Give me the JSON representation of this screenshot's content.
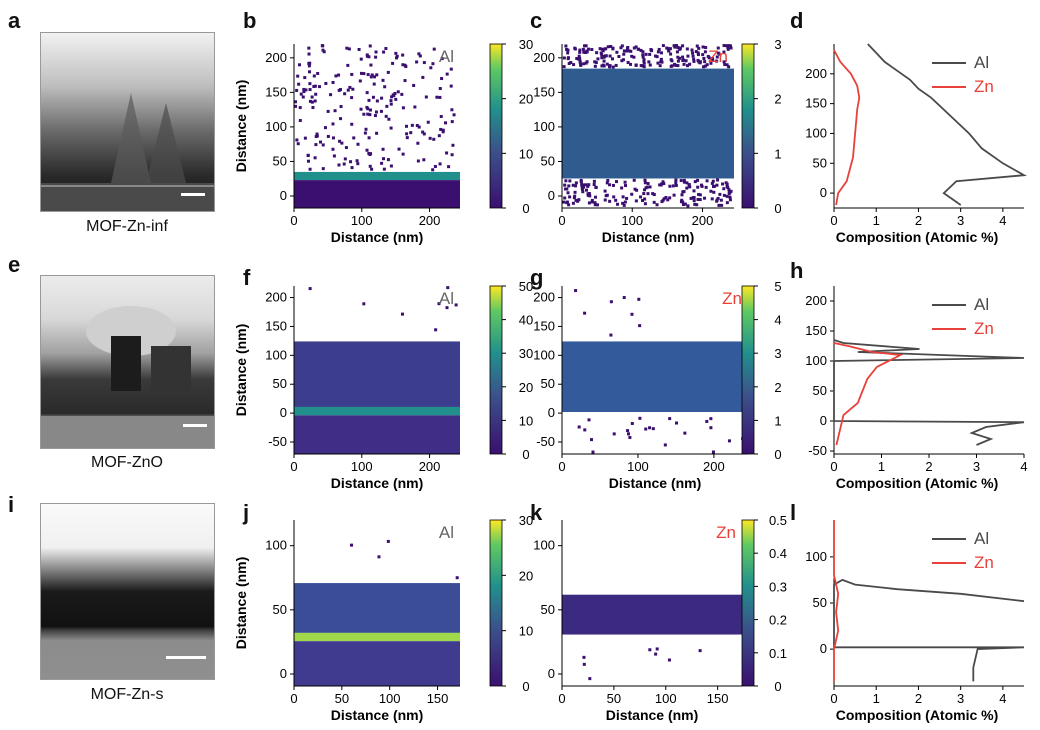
{
  "figure": {
    "rows": [
      {
        "tem": {
          "letter": "a",
          "caption": "MOF-Zn-inf"
        },
        "al_map": {
          "letter": "b",
          "element": "Al",
          "xlabel": "Distance (nm)",
          "ylabel": "Distance (nm)",
          "xticks": [
            "0",
            "100",
            "200"
          ],
          "yticks": [
            "0",
            "50",
            "100",
            "150",
            "200"
          ],
          "cbar_ticks": [
            "0",
            "10",
            "20",
            "30"
          ]
        },
        "zn_map": {
          "letter": "c",
          "element": "Zn",
          "xlabel": "Distance (nm)",
          "xticks": [
            "0",
            "100",
            "200"
          ],
          "yticks": [
            "0",
            "50",
            "100",
            "150",
            "200"
          ],
          "cbar_ticks": [
            "0",
            "1",
            "2",
            "3"
          ]
        },
        "profile": {
          "letter": "d",
          "xlabel": "Composition (Atomic %)",
          "xticks": [
            "0",
            "1",
            "2",
            "3",
            "4"
          ],
          "yticks": [
            "0",
            "50",
            "100",
            "150",
            "200"
          ],
          "legend": [
            "Al",
            "Zn"
          ]
        }
      },
      {
        "tem": {
          "letter": "e",
          "caption": "MOF-ZnO"
        },
        "al_map": {
          "letter": "f",
          "element": "Al",
          "xlabel": "Distance (nm)",
          "ylabel": "Distance (nm)",
          "xticks": [
            "0",
            "100",
            "200"
          ],
          "yticks": [
            "-50",
            "0",
            "50",
            "100",
            "150",
            "200"
          ],
          "cbar_ticks": [
            "0",
            "10",
            "20",
            "30",
            "40",
            "50"
          ]
        },
        "zn_map": {
          "letter": "g",
          "element": "Zn",
          "xlabel": "Distance (nm)",
          "xticks": [
            "0",
            "100",
            "200"
          ],
          "yticks": [
            "-50",
            "0",
            "50",
            "100",
            "150",
            "200"
          ],
          "cbar_ticks": [
            "0",
            "1",
            "2",
            "3",
            "4",
            "5"
          ]
        },
        "profile": {
          "letter": "h",
          "xlabel": "Composition (Atomic %)",
          "xticks": [
            "0",
            "1",
            "2",
            "3",
            "4"
          ],
          "yticks": [
            "-50",
            "0",
            "50",
            "100",
            "150",
            "200"
          ],
          "legend": [
            "Al",
            "Zn"
          ]
        }
      },
      {
        "tem": {
          "letter": "i",
          "caption": "MOF-Zn-s"
        },
        "al_map": {
          "letter": "j",
          "element": "Al",
          "xlabel": "Distance (nm)",
          "ylabel": "Distance (nm)",
          "xticks": [
            "0",
            "50",
            "100",
            "150"
          ],
          "yticks": [
            "0",
            "50",
            "100"
          ],
          "cbar_ticks": [
            "0",
            "10",
            "20",
            "30"
          ]
        },
        "zn_map": {
          "letter": "k",
          "element": "Zn",
          "xlabel": "Distance (nm)",
          "xticks": [
            "0",
            "50",
            "100",
            "150"
          ],
          "yticks": [
            "0",
            "50",
            "100"
          ],
          "cbar_ticks": [
            "0",
            "0.1",
            "0.2",
            "0.3",
            "0.4",
            "0.5"
          ]
        },
        "profile": {
          "letter": "l",
          "xlabel": "Composition (Atomic %)",
          "xticks": [
            "0",
            "1",
            "2",
            "3",
            "4"
          ],
          "yticks": [
            "0",
            "50",
            "100"
          ],
          "legend": [
            "Al",
            "Zn"
          ]
        }
      }
    ],
    "colors": {
      "al_line": "#4a4a4a",
      "zn_line": "#e8413a",
      "zn_label": "#e8413a",
      "al_label": "#666666",
      "map_low": "#3b0f70",
      "map_mid": "#21908c",
      "map_high": "#fde725"
    }
  },
  "chart_data": [
    {
      "type": "line",
      "panel": "d",
      "xlabel": "Composition (Atomic %)",
      "xlim": [
        0,
        4.5
      ],
      "ylim": [
        -25,
        250
      ],
      "series": [
        {
          "name": "Al",
          "x": [
            3.0,
            2.6,
            2.9,
            4.5,
            4.0,
            3.5,
            3.2,
            2.9,
            2.6,
            2.3,
            2.0,
            1.8,
            1.5,
            1.2,
            1.0,
            0.8
          ],
          "y": [
            -20,
            0,
            20,
            30,
            50,
            75,
            100,
            120,
            140,
            160,
            175,
            190,
            205,
            220,
            235,
            250
          ]
        },
        {
          "name": "Zn",
          "x": [
            0.05,
            0.1,
            0.3,
            0.45,
            0.5,
            0.55,
            0.6,
            0.55,
            0.4,
            0.15,
            0.0
          ],
          "y": [
            -20,
            0,
            20,
            60,
            100,
            140,
            160,
            180,
            200,
            220,
            240
          ]
        }
      ]
    },
    {
      "type": "line",
      "panel": "h",
      "xlabel": "Composition (Atomic %)",
      "xlim": [
        0,
        4
      ],
      "ylim": [
        -55,
        225
      ],
      "series": [
        {
          "name": "Al",
          "x": [
            3.0,
            3.3,
            2.9,
            3.2,
            4.0,
            0.0,
            0.0,
            4.0,
            0.5,
            1.8,
            0.2,
            0.0
          ],
          "y": [
            -40,
            -30,
            -20,
            -10,
            -2,
            0,
            100,
            105,
            115,
            120,
            130,
            135
          ]
        },
        {
          "name": "Zn",
          "x": [
            0.05,
            0.2,
            0.5,
            0.6,
            0.7,
            0.9,
            1.4,
            0.8,
            0.3,
            0.0
          ],
          "y": [
            -40,
            10,
            30,
            50,
            70,
            90,
            110,
            115,
            125,
            130
          ]
        }
      ]
    },
    {
      "type": "line",
      "panel": "l",
      "xlabel": "Composition (Atomic %)",
      "xlim": [
        0,
        4.5
      ],
      "ylim": [
        -40,
        140
      ],
      "series": [
        {
          "name": "Al",
          "x": [
            3.3,
            3.3,
            3.4,
            4.5,
            0.0,
            0.0,
            0.2,
            0.5,
            1.5,
            3.0,
            4.5
          ],
          "y": [
            -35,
            -20,
            0,
            2,
            2,
            70,
            75,
            70,
            65,
            60,
            52
          ]
        },
        {
          "name": "Zn",
          "x": [
            0.0,
            0.0,
            0.1,
            0.05,
            0.1,
            0.0,
            0.0
          ],
          "y": [
            -35,
            0,
            20,
            40,
            60,
            80,
            140
          ]
        }
      ]
    }
  ]
}
